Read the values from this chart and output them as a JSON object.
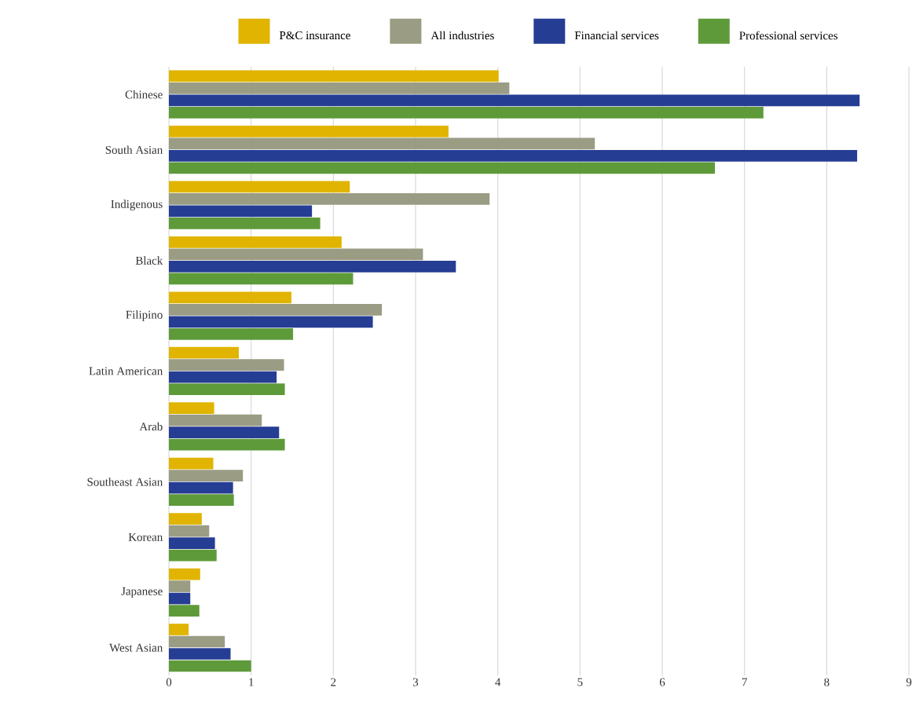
{
  "chart_data": {
    "type": "bar",
    "orientation": "horizontal",
    "categories": [
      "Chinese",
      "South Asian",
      "Indigenous",
      "Black",
      "Filipino",
      "Latin American",
      "Arab",
      "Southeast Asian",
      "Korean",
      "Japanese",
      "West Asian"
    ],
    "series": [
      {
        "name": "P&C insurance",
        "color": "#e0b400",
        "values": [
          4.01,
          3.4,
          2.2,
          2.1,
          1.49,
          0.85,
          0.55,
          0.54,
          0.4,
          0.38,
          0.24
        ]
      },
      {
        "name": "All industries",
        "color": "#9a9c84",
        "values": [
          4.14,
          5.18,
          3.9,
          3.09,
          2.59,
          1.4,
          1.13,
          0.9,
          0.49,
          0.26,
          0.68
        ]
      },
      {
        "name": "Financial services",
        "color": "#263d94",
        "values": [
          8.4,
          8.37,
          1.74,
          3.49,
          2.48,
          1.31,
          1.34,
          0.78,
          0.56,
          0.26,
          0.75
        ]
      },
      {
        "name": "Professional services",
        "color": "#5e9a3a",
        "values": [
          7.23,
          6.64,
          1.84,
          2.24,
          1.51,
          1.41,
          1.41,
          0.79,
          0.58,
          0.37,
          1.0
        ]
      }
    ],
    "xlim": [
      0,
      9
    ],
    "xticks": [
      0,
      1,
      2,
      3,
      4,
      5,
      6,
      7,
      8,
      9
    ],
    "grid": "x",
    "legend": "top"
  }
}
